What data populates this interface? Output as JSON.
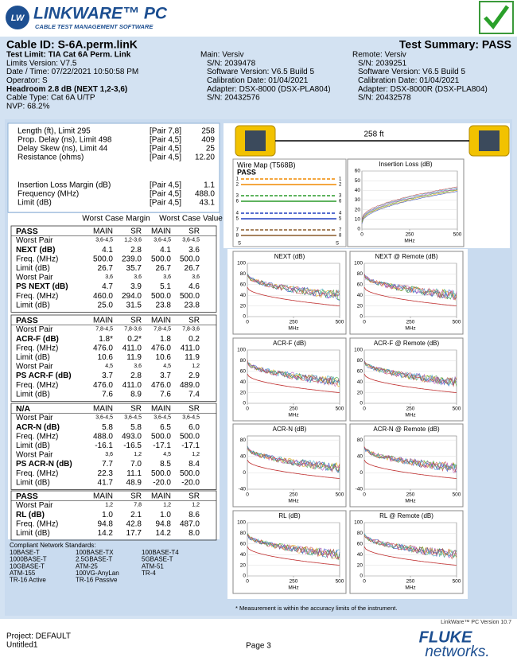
{
  "header": {
    "logo_mark": "LW",
    "logo": "LINKWARE™ PC",
    "tagline": "CABLE TEST MANAGEMENT SOFTWARE"
  },
  "summary": {
    "cable_id": "Cable ID: S-6A.perm.linK",
    "result": "Test Summary: PASS"
  },
  "info": {
    "test": [
      "Test Limit: TIA Cat 6A Perm. Link",
      "Limits Version: V7.5",
      "Date / Time: 07/22/2021  10:50:58 PM",
      "Operator: S",
      "Headroom 2.8 dB (NEXT 1,2-3,6)",
      "Cable Type: Cat 6A U/TP",
      "NVP: 68.2%"
    ],
    "main": [
      "Main: Versiv",
      "S/N: 2039478",
      "Software Version: V6.5 Build 5",
      "Calibration Date: 01/04/2021",
      "Adapter: DSX-8000 (DSX-PLA804)",
      "S/N: 20432576"
    ],
    "remote": [
      "Remote: Versiv",
      "S/N: 2039251",
      "Software Version: V6.5 Build 5",
      "Calibration Date: 01/04/2021",
      "Adapter: DSX-8000R (DSX-PLA804)",
      "S/N: 20432578"
    ]
  },
  "results": {
    "rows": [
      [
        "Length (ft), Limit 295",
        "[Pair 7,8]",
        "258"
      ],
      [
        "Prop. Delay (ns), Limit 498",
        "[Pair 4,5]",
        "409"
      ],
      [
        "Delay Skew (ns), Limit 44",
        "[Pair 4,5]",
        "25"
      ],
      [
        "Resistance (ohms)",
        "[Pair 4,5]",
        "12.20"
      ],
      [
        "Insertion Loss Margin (dB)",
        "[Pair 4,5]",
        "1.1"
      ],
      [
        "Frequency (MHz)",
        "[Pair 4,5]",
        "488.0"
      ],
      [
        "Limit (dB)",
        "[Pair 4,5]",
        "43.1"
      ]
    ]
  },
  "margin_table": {
    "headings": [
      "Worst Case Margin",
      "Worst Case Value"
    ],
    "sections": [
      {
        "header": [
          "PASS",
          "MAIN",
          "SR",
          "MAIN",
          "SR"
        ],
        "rows": [
          [
            "Worst Pair",
            "3,6-4,5",
            "1,2-3,6",
            "3,6-4,5",
            "3,6-4,5"
          ],
          [
            "NEXT (dB)",
            "4.1",
            "2.8",
            "4.1",
            "3.6"
          ],
          [
            "Freq. (MHz)",
            "500.0",
            "239.0",
            "500.0",
            "500.0"
          ],
          [
            "Limit (dB)",
            "26.7",
            "35.7",
            "26.7",
            "26.7"
          ],
          [
            "Worst Pair",
            "3,6",
            "3,6",
            "3,6",
            "3,6"
          ],
          [
            "PS NEXT (dB)",
            "4.7",
            "3.9",
            "5.1",
            "4.6"
          ],
          [
            "Freq. (MHz)",
            "460.0",
            "294.0",
            "500.0",
            "500.0"
          ],
          [
            "Limit (dB)",
            "25.0",
            "31.5",
            "23.8",
            "23.8"
          ]
        ]
      },
      {
        "header": [
          "PASS",
          "MAIN",
          "SR",
          "MAIN",
          "SR"
        ],
        "rows": [
          [
            "Worst Pair",
            "7,8-4,5",
            "7,8-3,6",
            "7,8-4,5",
            "7,8-3,6"
          ],
          [
            "ACR-F (dB)",
            "1.8*",
            "0.2*",
            "1.8",
            "0.2"
          ],
          [
            "Freq. (MHz)",
            "476.0",
            "411.0",
            "476.0",
            "411.0"
          ],
          [
            "Limit (dB)",
            "10.6",
            "11.9",
            "10.6",
            "11.9"
          ],
          [
            "Worst Pair",
            "4,5",
            "3,6",
            "4,5",
            "1,2"
          ],
          [
            "PS ACR-F (dB)",
            "3.7",
            "2.8",
            "3.7",
            "2.9"
          ],
          [
            "Freq. (MHz)",
            "476.0",
            "411.0",
            "476.0",
            "489.0"
          ],
          [
            "Limit (dB)",
            "7.6",
            "8.9",
            "7.6",
            "7.4"
          ]
        ]
      },
      {
        "header": [
          "N/A",
          "MAIN",
          "SR",
          "MAIN",
          "SR"
        ],
        "rows": [
          [
            "Worst Pair",
            "3,6-4,5",
            "3,6-4,5",
            "3,6-4,5",
            "3,6-4,5"
          ],
          [
            "ACR-N (dB)",
            "5.8",
            "5.8",
            "6.5",
            "6.0"
          ],
          [
            "Freq. (MHz)",
            "488.0",
            "493.0",
            "500.0",
            "500.0"
          ],
          [
            "Limit (dB)",
            "-16.1",
            "-16.5",
            "-17.1",
            "-17.1"
          ],
          [
            "Worst Pair",
            "3,6",
            "1,2",
            "4,5",
            "1,2"
          ],
          [
            "PS ACR-N (dB)",
            "7.7",
            "7.0",
            "8.5",
            "8.4"
          ],
          [
            "Freq. (MHz)",
            "22.3",
            "11.1",
            "500.0",
            "500.0"
          ],
          [
            "Limit (dB)",
            "41.7",
            "48.9",
            "-20.0",
            "-20.0"
          ]
        ]
      },
      {
        "header": [
          "PASS",
          "MAIN",
          "SR",
          "MAIN",
          "SR"
        ],
        "rows": [
          [
            "Worst Pair",
            "1,2",
            "7,8",
            "1,2",
            "1,2"
          ],
          [
            "RL (dB)",
            "1.0",
            "2.1",
            "1.0",
            "8.6"
          ],
          [
            "Freq. (MHz)",
            "94.8",
            "42.8",
            "94.8",
            "487.0"
          ],
          [
            "Limit (dB)",
            "14.2",
            "17.7",
            "14.2",
            "8.0"
          ]
        ]
      }
    ]
  },
  "standards": {
    "title": "Compliant Network Standards:",
    "columns": [
      [
        "10BASE-T",
        "1000BASE-T",
        "10GBASE-T",
        "ATM-155",
        "TR-16 Active"
      ],
      [
        "100BASE-TX",
        "2.5GBASE-T",
        "ATM-25",
        "100VG-AnyLan",
        "TR-16 Passive"
      ],
      [
        "100BASE-T4",
        "5GBASE-T",
        "ATM-51",
        "TR-4"
      ]
    ]
  },
  "length_display": "258 ft",
  "wire_map": {
    "title": "Wire Map (T568B)",
    "result": "PASS",
    "pins": [
      "1",
      "2",
      "3",
      "6",
      "4",
      "5",
      "7",
      "8"
    ],
    "shield": "S"
  },
  "charts": [
    {
      "title": "Insertion Loss (dB)",
      "ylim": [
        0,
        60
      ],
      "yticks": [
        60,
        50,
        40,
        30,
        20,
        10,
        0
      ],
      "xlim": [
        0,
        500
      ],
      "xticks": [
        0,
        250,
        500
      ],
      "xlabel": "MHz"
    },
    {
      "title": "NEXT (dB)",
      "ylim": [
        0,
        100
      ],
      "yticks": [
        100,
        80,
        60,
        40,
        20,
        0
      ],
      "xlim": [
        0,
        500
      ],
      "xticks": [
        0,
        250,
        500
      ],
      "xlabel": "MHz"
    },
    {
      "title": "NEXT @ Remote (dB)",
      "ylim": [
        0,
        100
      ],
      "yticks": [
        100,
        80,
        60,
        40,
        20,
        0
      ],
      "xlim": [
        0,
        500
      ],
      "xticks": [
        0,
        250,
        500
      ],
      "xlabel": "MHz"
    },
    {
      "title": "ACR-F (dB)",
      "ylim": [
        0,
        100
      ],
      "yticks": [
        100,
        80,
        60,
        40,
        20,
        0
      ],
      "xlim": [
        0,
        500
      ],
      "xticks": [
        0,
        250,
        500
      ],
      "xlabel": "MHz"
    },
    {
      "title": "ACR-F @ Remote (dB)",
      "ylim": [
        0,
        100
      ],
      "yticks": [
        100,
        80,
        60,
        40,
        20,
        0
      ],
      "xlim": [
        0,
        500
      ],
      "xticks": [
        0,
        250,
        500
      ],
      "xlabel": "MHz"
    },
    {
      "title": "ACR-N (dB)",
      "ylim": [
        -40,
        90
      ],
      "yticks": [
        80,
        40,
        0,
        -40
      ],
      "xlim": [
        0,
        500
      ],
      "xticks": [
        0,
        250,
        500
      ],
      "xlabel": "MHz"
    },
    {
      "title": "ACR-N @ Remote (dB)",
      "ylim": [
        -40,
        90
      ],
      "yticks": [
        80,
        40,
        0,
        -40
      ],
      "xlim": [
        0,
        500
      ],
      "xticks": [
        0,
        250,
        500
      ],
      "xlabel": "MHz"
    },
    {
      "title": "RL (dB)",
      "ylim": [
        0,
        100
      ],
      "yticks": [
        100,
        80,
        60,
        40,
        20,
        0
      ],
      "xlim": [
        0,
        500
      ],
      "xticks": [
        0,
        250,
        500
      ],
      "xlabel": "MHz"
    },
    {
      "title": "RL @ Remote (dB)",
      "ylim": [
        0,
        100
      ],
      "yticks": [
        100,
        80,
        60,
        40,
        20,
        0
      ],
      "xlim": [
        0,
        500
      ],
      "xticks": [
        0,
        250,
        500
      ],
      "xlabel": "MHz"
    }
  ],
  "footnote": "* Measurement is within the accuracy limits of the instrument.",
  "version": "LinkWare™ PC Version 10.7",
  "footer": {
    "project": "Project: DEFAULT",
    "file": "Untitled1",
    "page": "Page 3",
    "brand": "FLUKE",
    "brand_sub": "networks."
  }
}
